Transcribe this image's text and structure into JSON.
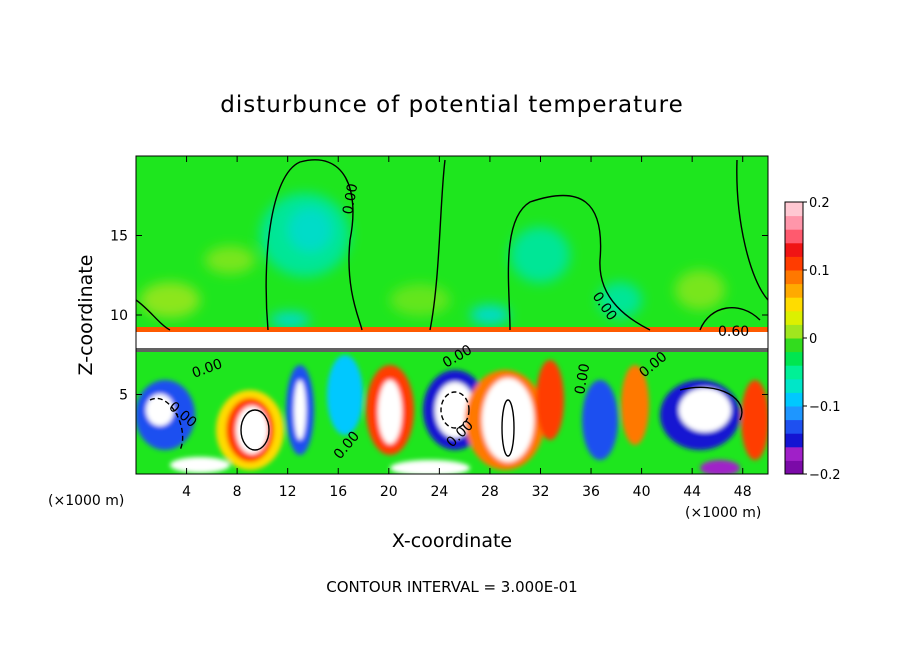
{
  "chart_data": {
    "type": "heatmap",
    "title": "disturbunce of potential temperature",
    "xlabel": "X-coordinate",
    "ylabel": "Z-coordinate",
    "x_unit_left": "(×1000 m)",
    "x_unit_right": "(×1000 m)",
    "xlim": [
      0,
      50
    ],
    "ylim": [
      0,
      20
    ],
    "x_ticks": [
      4,
      8,
      12,
      16,
      20,
      24,
      28,
      32,
      36,
      40,
      44,
      48
    ],
    "y_ticks": [
      5,
      10,
      15
    ],
    "colorbar": {
      "range": [
        -0.2,
        0.2
      ],
      "tick_labels": [
        "0.2",
        "0.1",
        "0",
        "−0.1",
        "−0.2"
      ],
      "tick_values": [
        0.2,
        0.1,
        0,
        -0.1,
        -0.2
      ],
      "colors": [
        "#7b0aa8",
        "#a020c8",
        "#1414d2",
        "#1e50f0",
        "#1e96ff",
        "#00c8ff",
        "#00e6c8",
        "#00f096",
        "#00e650",
        "#32dc1e",
        "#a0e61e",
        "#dcf000",
        "#ffdc00",
        "#ffaa00",
        "#ff7800",
        "#ff3c00",
        "#f01414",
        "#ff5a6e",
        "#ff96aa",
        "#ffc8d2"
      ]
    },
    "contour_labels": [
      "0.00",
      "0.00",
      "0.60",
      "0.00",
      "0.00",
      "0.00",
      "0.00",
      "0.00",
      "0.00",
      "0.00"
    ],
    "footer": "CONTOUR INTERVAL = 3.000E-01"
  }
}
